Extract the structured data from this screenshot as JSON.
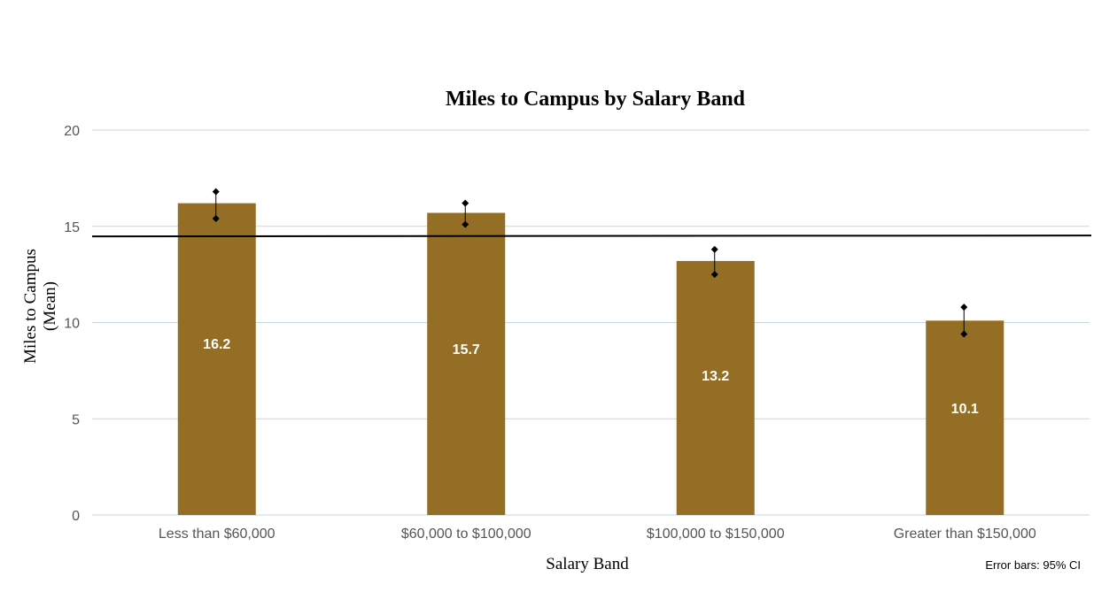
{
  "chart_data": {
    "type": "bar",
    "title": "Miles to Campus by Salary Band",
    "xlabel": "Salary Band",
    "ylabel": [
      "Miles to Campus",
      "(Mean)"
    ],
    "categories": [
      "Less than $60,000",
      "$60,000 to $100,000",
      "$100,000 to $150,000",
      "Greater than $150,000"
    ],
    "values": [
      16.2,
      15.7,
      13.2,
      10.1
    ],
    "data_labels": [
      "16.2",
      "15.7",
      "13.2",
      "10.1"
    ],
    "error_bars": {
      "label": "Error bars: 95% CI",
      "upper": [
        16.8,
        16.2,
        13.8,
        10.8
      ],
      "lower": [
        15.4,
        15.1,
        12.5,
        9.4
      ]
    },
    "reference_line": 14.5,
    "ylim": [
      0,
      20
    ],
    "yticks": [
      0,
      5,
      10,
      15,
      20
    ],
    "ytick_labels": [
      "0",
      "5",
      "10",
      "15",
      "20"
    ],
    "grid": true,
    "legend": "none",
    "colors": {
      "bar": "#946e24",
      "grid": "#c9d5dc",
      "reference_line": "#000000",
      "error_bar": "#000000"
    }
  }
}
